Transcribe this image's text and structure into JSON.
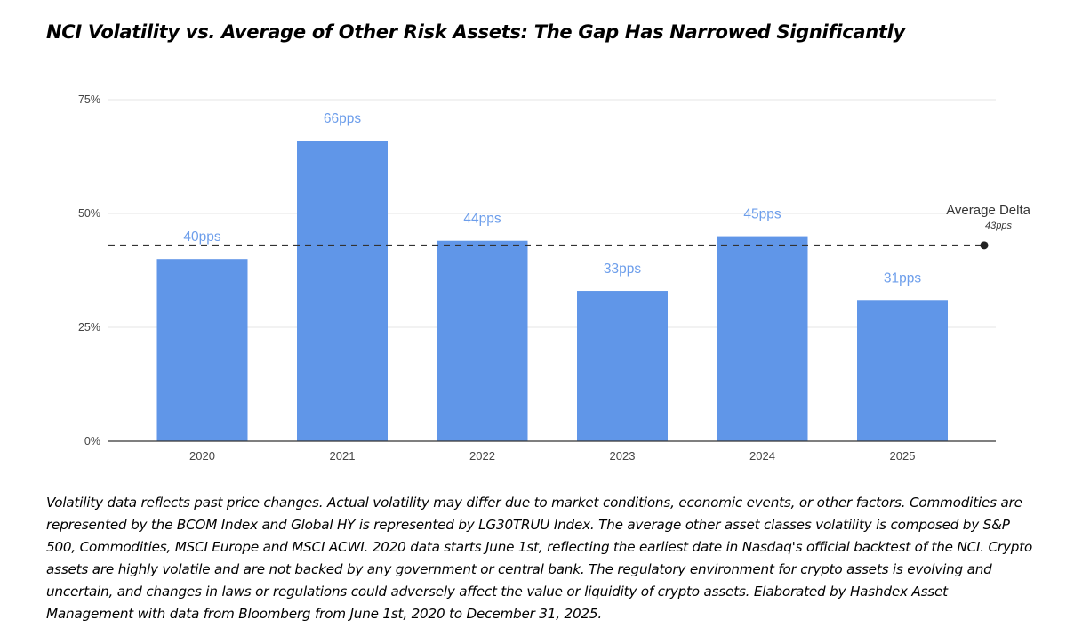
{
  "title": "NCI Volatility vs. Average of Other Risk Assets: The Gap Has Narrowed Significantly",
  "footnote": "Volatility data reflects past price changes. Actual volatility may differ due to market conditions, economic events, or other factors. Commodities are represented by the BCOM Index and Global HY is represented by LG30TRUU Index. The average other asset classes volatility is composed by S&P 500, Commodities, MSCI Europe and MSCI ACWI. 2020 data starts June 1st, reflecting the earliest date in Nasdaq's official backtest of the NCI. Crypto assets are highly volatile and are not backed by any government or central bank. The regulatory environment for crypto assets is evolving and uncertain, and changes in laws or regulations could adversely affect the value or liquidity of crypto assets. Elaborated by Hashdex Asset Management with data from Bloomberg from June 1st, 2020 to December 31, 2025.",
  "colors": {
    "bar": "#6096E8",
    "bar_label": "#6D9EEB",
    "axis_text": "#444444",
    "gridline": "#E6E6E6",
    "average_line": "#333333"
  },
  "chart_data": {
    "type": "bar",
    "categories": [
      "2020",
      "2021",
      "2022",
      "2023",
      "2024",
      "2025"
    ],
    "values": [
      40,
      66,
      44,
      33,
      45,
      31
    ],
    "data_labels": [
      "40pps",
      "66pps",
      "44pps",
      "33pps",
      "45pps",
      "31pps"
    ],
    "ylim": [
      0,
      75
    ],
    "yticks": [
      0,
      25,
      50,
      75
    ],
    "ytick_labels": [
      "0%",
      "25%",
      "50%",
      "75%"
    ],
    "grid": true,
    "average_line": {
      "value": 43,
      "label": "Average Delta",
      "sublabel": "43pps"
    }
  }
}
